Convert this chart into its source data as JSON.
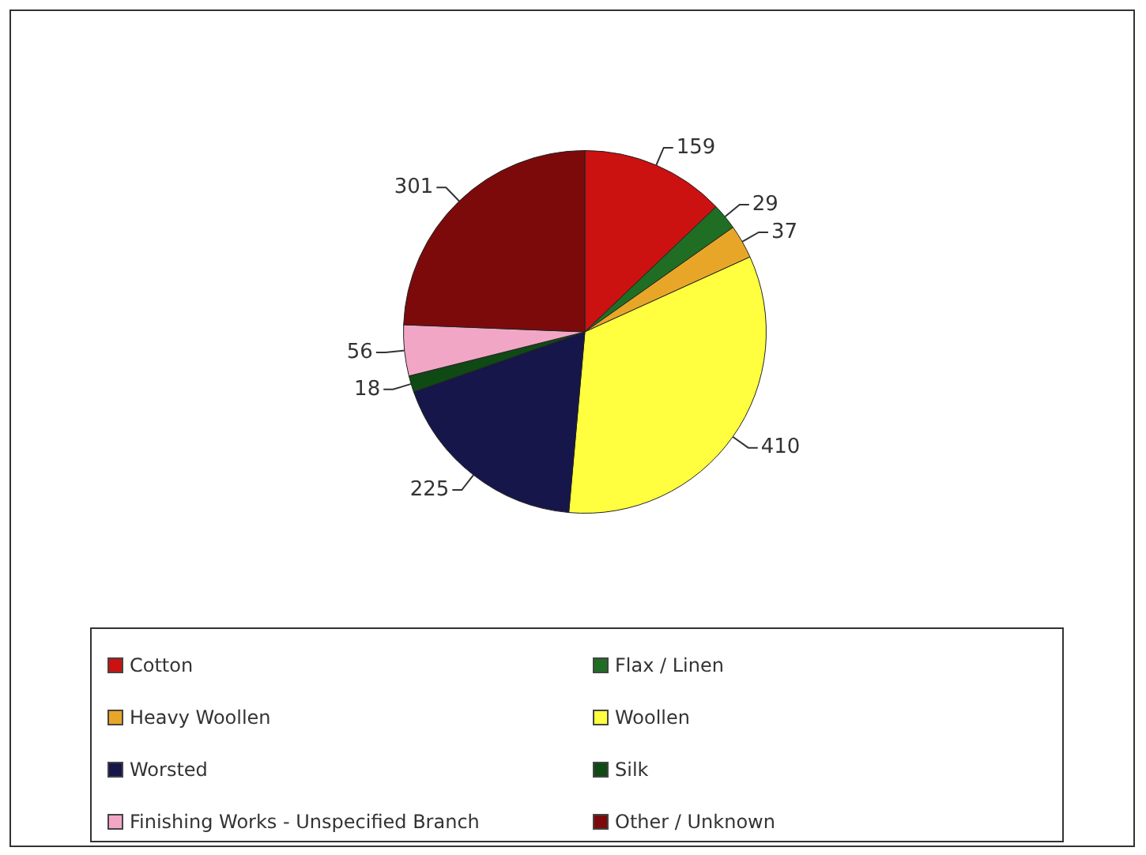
{
  "chart_data": {
    "type": "pie",
    "categories": [
      "Cotton",
      "Flax / Linen",
      "Heavy Woollen",
      "Woollen",
      "Worsted",
      "Silk",
      "Finishing Works - Unspecified Branch",
      "Other / Unknown"
    ],
    "values": [
      159,
      29,
      37,
      410,
      225,
      18,
      56,
      301
    ],
    "colors": [
      "#cc1111",
      "#1f6e23",
      "#e8a628",
      "#ffff40",
      "#16164a",
      "#0f4a14",
      "#f2a6c6",
      "#7d0a0a"
    ],
    "data_labels": true,
    "legend": "bottom"
  }
}
